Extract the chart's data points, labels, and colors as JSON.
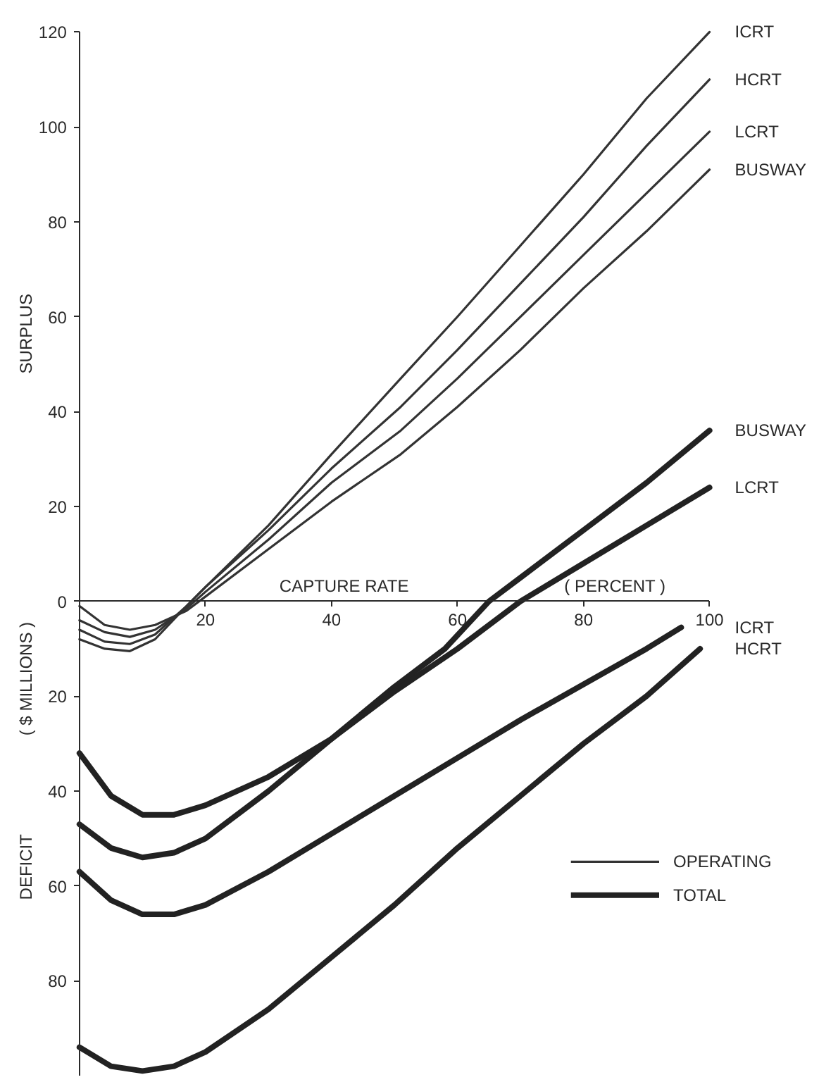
{
  "chart_data": {
    "type": "line",
    "xlabel": "CAPTURE RATE",
    "ylabel": "( $ MILLIONS )",
    "annotations": [
      "SURPLUS",
      "DEFICIT",
      "( PERCENT )",
      "OPERATING",
      "TOTAL"
    ],
    "xlim": [
      0,
      100
    ],
    "xticks": [
      20,
      40,
      60,
      80,
      100
    ],
    "ylim": [
      -100,
      120
    ],
    "yticks": [
      {
        "value": -80,
        "label": "80"
      },
      {
        "value": -60,
        "label": "60"
      },
      {
        "value": -40,
        "label": "40"
      },
      {
        "value": -20,
        "label": "20"
      },
      0,
      20,
      40,
      60,
      80,
      100,
      120
    ],
    "grid": false,
    "marker": "none",
    "line_style": "solid",
    "series": [
      {
        "name": "ICRT",
        "color": "#333333",
        "x": [
          0,
          4,
          8,
          12,
          17,
          20,
          30,
          40,
          51,
          60,
          70,
          80,
          90,
          100
        ],
        "values": [
          -8,
          -10,
          -10.5,
          -8,
          -1,
          3,
          16,
          31,
          47,
          60,
          75,
          90,
          106,
          120
        ]
      },
      {
        "name": "HCRT",
        "color": "#333333",
        "x": [
          0,
          4,
          8,
          12,
          17,
          20,
          30,
          40,
          51,
          60,
          70,
          80,
          90,
          100
        ],
        "values": [
          -6,
          -8.5,
          -9,
          -7,
          -1,
          3,
          15,
          28,
          41,
          53,
          67,
          81,
          96,
          110
        ]
      },
      {
        "name": "LCRT",
        "color": "#333333",
        "x": [
          0,
          4,
          8,
          12,
          17,
          20,
          30,
          40,
          51,
          60,
          70,
          80,
          90,
          100
        ],
        "values": [
          -4,
          -6.5,
          -7.5,
          -6,
          -1.5,
          2,
          13,
          25,
          36,
          47,
          60,
          73,
          86,
          99
        ]
      },
      {
        "name": "BUSWAY",
        "color": "#333333",
        "x": [
          0,
          4,
          8,
          12,
          17,
          20,
          30,
          40,
          51,
          60,
          70,
          80,
          90,
          100
        ],
        "values": [
          -1,
          -5,
          -6,
          -5,
          -2,
          1,
          11,
          21,
          31,
          41,
          53,
          66,
          78,
          91
        ]
      },
      {
        "name": "BUSWAY",
        "color": "#222222",
        "x": [
          0,
          5,
          10,
          15,
          20,
          30,
          40,
          50,
          58,
          65,
          70,
          80,
          90,
          100
        ],
        "values": [
          -47,
          -52,
          -54,
          -53,
          -50,
          -40,
          -29,
          -18,
          -10,
          0,
          5,
          15,
          25,
          36
        ]
      },
      {
        "name": "LCRT",
        "color": "#222222",
        "x": [
          0,
          5,
          10,
          15,
          20,
          30,
          40,
          50,
          60,
          70,
          80,
          90,
          100
        ],
        "values": [
          -32,
          -41,
          -45,
          -45,
          -43,
          -37,
          -29,
          -19,
          -10,
          0,
          8,
          16,
          24
        ]
      },
      {
        "name": "ICRT",
        "color": "#222222",
        "x": [
          0,
          5,
          10,
          15,
          20,
          30,
          40,
          50,
          60,
          70,
          80,
          90,
          95.5
        ],
        "values": [
          -57,
          -63,
          -66,
          -66,
          -64,
          -57,
          -49,
          -41,
          -33,
          -25,
          -17.5,
          -10,
          -5.5
        ]
      },
      {
        "name": "HCRT",
        "color": "#222222",
        "x": [
          0,
          5,
          10,
          15,
          20,
          30,
          40,
          50,
          60,
          70,
          80,
          90,
          98.5
        ],
        "values": [
          -94,
          -98,
          -99,
          -98,
          -95,
          -86,
          -75,
          -64,
          -52,
          -41,
          -30,
          -20,
          -10
        ]
      }
    ]
  }
}
